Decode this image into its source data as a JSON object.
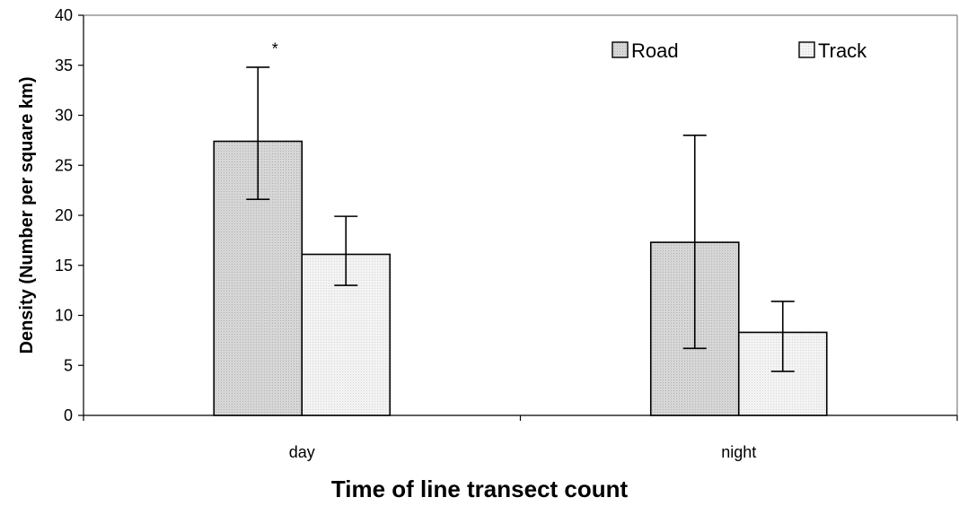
{
  "chart_data": {
    "type": "bar",
    "categories": [
      "day",
      "night"
    ],
    "series": [
      {
        "name": "Road",
        "values": [
          27.4,
          17.3
        ],
        "error_low": [
          21.6,
          6.7
        ],
        "error_high": [
          34.8,
          28.0
        ],
        "color": "#d4d4d4"
      },
      {
        "name": "Track",
        "values": [
          16.1,
          8.3
        ],
        "error_low": [
          13.0,
          4.4
        ],
        "error_high": [
          19.9,
          11.4
        ],
        "color": "#f1f1f1"
      }
    ],
    "xlabel": "Time of line transect count",
    "ylabel": "Density (Number per square km)",
    "ylim": [
      0,
      40
    ],
    "yticks": [
      0,
      5,
      10,
      15,
      20,
      25,
      30,
      35,
      40
    ],
    "annotations": [
      {
        "text": "*",
        "category": "day",
        "series": "Road",
        "y": 37
      }
    ],
    "legend_position": "top-right",
    "grid": false
  }
}
